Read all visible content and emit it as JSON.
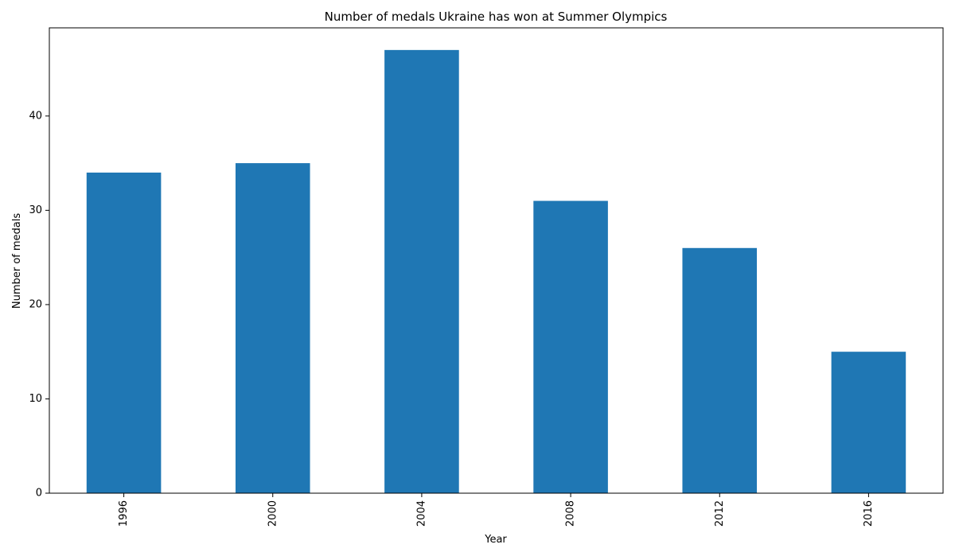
{
  "chart_data": {
    "type": "bar",
    "title": "Number of medals Ukraine has won at Summer Olympics",
    "xlabel": "Year",
    "ylabel": "Number of medals",
    "categories": [
      "1996",
      "2000",
      "2004",
      "2008",
      "2012",
      "2016"
    ],
    "values": [
      34,
      35,
      47,
      31,
      26,
      15
    ],
    "ylim": [
      0,
      49.35
    ],
    "yticks": [
      0,
      10,
      20,
      30,
      40
    ],
    "ytick_labels": [
      "0",
      "10",
      "20",
      "30",
      "40"
    ],
    "xtick_rotation": "vertical",
    "grid": false,
    "legend": "none",
    "bar_color": "#1f77b4"
  }
}
